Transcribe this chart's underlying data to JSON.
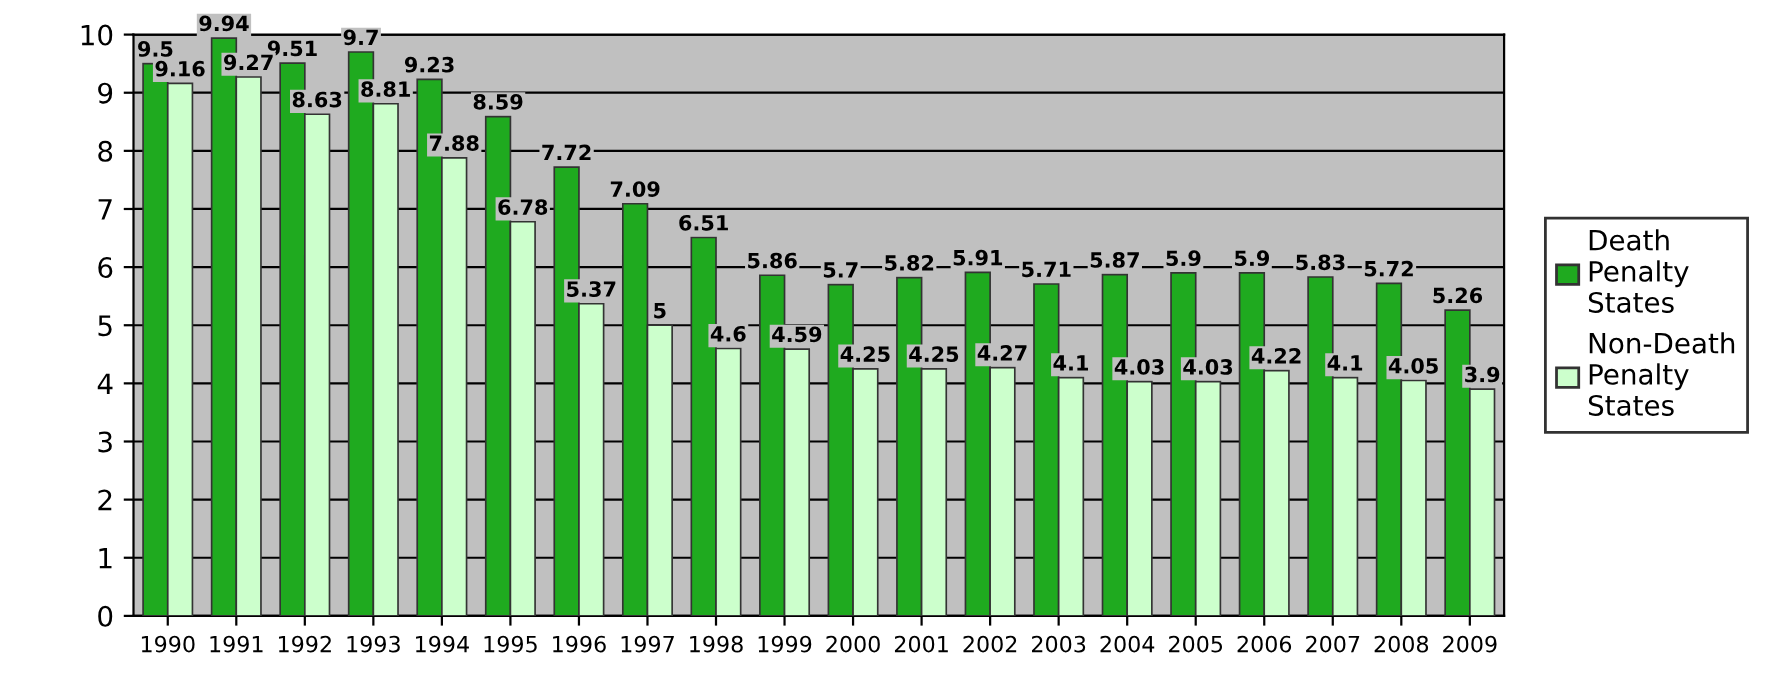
{
  "chart_data": {
    "type": "bar",
    "categories": [
      "1990",
      "1991",
      "1992",
      "1993",
      "1994",
      "1995",
      "1996",
      "1997",
      "1998",
      "1999",
      "2000",
      "2001",
      "2002",
      "2003",
      "2004",
      "2005",
      "2006",
      "2007",
      "2008",
      "2009"
    ],
    "series": [
      {
        "name": "Death Penalty States",
        "color": "#1faa1f",
        "values": [
          9.5,
          9.94,
          9.51,
          9.7,
          9.23,
          8.59,
          7.72,
          7.09,
          6.51,
          5.86,
          5.7,
          5.82,
          5.91,
          5.71,
          5.87,
          5.9,
          5.9,
          5.83,
          5.72,
          5.26
        ]
      },
      {
        "name": "Non-Death Penalty States",
        "color": "#ccffcc",
        "values": [
          9.16,
          9.27,
          8.63,
          8.81,
          7.88,
          6.78,
          5.37,
          5,
          4.6,
          4.59,
          4.25,
          4.25,
          4.27,
          4.1,
          4.03,
          4.03,
          4.22,
          4.1,
          4.05,
          3.9
        ]
      }
    ],
    "ylim": [
      0,
      10
    ],
    "yticks": [
      0,
      1,
      2,
      3,
      4,
      5,
      6,
      7,
      8,
      9,
      10
    ],
    "grid": "y",
    "legend": "right",
    "data_labels": true
  }
}
